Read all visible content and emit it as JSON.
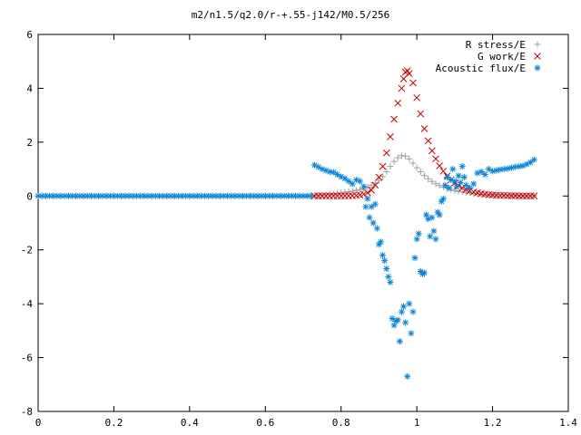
{
  "chart_data": {
    "type": "scatter",
    "title": "m2/n1.5/q2.0/r-+.55-j142/M0.5/256",
    "xlabel": "",
    "ylabel": "",
    "xlim": [
      0,
      1.4
    ],
    "ylim": [
      -8,
      6
    ],
    "x_ticks": [
      0,
      0.2,
      0.4,
      0.6,
      0.8,
      1,
      1.2,
      1.4
    ],
    "y_ticks": [
      -8,
      -6,
      -4,
      -2,
      0,
      2,
      4,
      6
    ],
    "grid": false,
    "legend_position": "top-right",
    "series": [
      {
        "name": "R stress/E",
        "marker": "plus",
        "color": "#a0a0a0",
        "points": [
          [
            0.0,
            0
          ],
          [
            0.02,
            0
          ],
          [
            0.04,
            0
          ],
          [
            0.06,
            0
          ],
          [
            0.08,
            0
          ],
          [
            0.1,
            0
          ],
          [
            0.12,
            0
          ],
          [
            0.14,
            0
          ],
          [
            0.16,
            0
          ],
          [
            0.18,
            0
          ],
          [
            0.2,
            0
          ],
          [
            0.22,
            0
          ],
          [
            0.24,
            0
          ],
          [
            0.26,
            0
          ],
          [
            0.28,
            0
          ],
          [
            0.3,
            0
          ],
          [
            0.32,
            0
          ],
          [
            0.34,
            0
          ],
          [
            0.36,
            0
          ],
          [
            0.38,
            0
          ],
          [
            0.4,
            0
          ],
          [
            0.42,
            0
          ],
          [
            0.44,
            0
          ],
          [
            0.46,
            0
          ],
          [
            0.48,
            0
          ],
          [
            0.5,
            0
          ],
          [
            0.52,
            0
          ],
          [
            0.54,
            0
          ],
          [
            0.56,
            0
          ],
          [
            0.58,
            0
          ],
          [
            0.6,
            0
          ],
          [
            0.62,
            0
          ],
          [
            0.64,
            0
          ],
          [
            0.66,
            0
          ],
          [
            0.68,
            0
          ],
          [
            0.7,
            0
          ],
          [
            0.72,
            0
          ],
          [
            0.73,
            0.02
          ],
          [
            0.74,
            0.03
          ],
          [
            0.75,
            0.04
          ],
          [
            0.76,
            0.05
          ],
          [
            0.77,
            0.07
          ],
          [
            0.78,
            0.08
          ],
          [
            0.79,
            0.1
          ],
          [
            0.8,
            0.12
          ],
          [
            0.81,
            0.14
          ],
          [
            0.82,
            0.16
          ],
          [
            0.83,
            0.18
          ],
          [
            0.84,
            0.21
          ],
          [
            0.85,
            0.24
          ],
          [
            0.86,
            0.28
          ],
          [
            0.87,
            0.33
          ],
          [
            0.88,
            0.4
          ],
          [
            0.89,
            0.48
          ],
          [
            0.9,
            0.58
          ],
          [
            0.91,
            0.72
          ],
          [
            0.92,
            0.9
          ],
          [
            0.93,
            1.1
          ],
          [
            0.94,
            1.28
          ],
          [
            0.95,
            1.42
          ],
          [
            0.96,
            1.5
          ],
          [
            0.97,
            1.48
          ],
          [
            0.98,
            1.38
          ],
          [
            0.99,
            1.22
          ],
          [
            1.0,
            1.05
          ],
          [
            1.01,
            0.9
          ],
          [
            1.02,
            0.76
          ],
          [
            1.03,
            0.64
          ],
          [
            1.04,
            0.54
          ],
          [
            1.05,
            0.46
          ],
          [
            1.06,
            0.39
          ],
          [
            1.07,
            0.33
          ],
          [
            1.08,
            0.28
          ],
          [
            1.09,
            0.24
          ],
          [
            1.1,
            0.2
          ],
          [
            1.11,
            0.17
          ],
          [
            1.12,
            0.15
          ],
          [
            1.13,
            0.13
          ],
          [
            1.14,
            0.11
          ],
          [
            1.15,
            0.1
          ],
          [
            1.16,
            0.08
          ],
          [
            1.17,
            0.07
          ],
          [
            1.18,
            0.06
          ],
          [
            1.19,
            0.05
          ],
          [
            1.2,
            0.05
          ],
          [
            1.21,
            0.04
          ],
          [
            1.22,
            0.04
          ],
          [
            1.23,
            0.03
          ],
          [
            1.24,
            0.03
          ],
          [
            1.25,
            0.02
          ],
          [
            1.26,
            0.02
          ],
          [
            1.27,
            0.02
          ],
          [
            1.28,
            0.01
          ],
          [
            1.29,
            0.01
          ],
          [
            1.3,
            0.01
          ],
          [
            1.31,
            0.01
          ]
        ]
      },
      {
        "name": "G work/E",
        "marker": "cross",
        "color": "#cc0000",
        "points": [
          [
            0.73,
            0
          ],
          [
            0.74,
            0
          ],
          [
            0.75,
            0
          ],
          [
            0.76,
            0
          ],
          [
            0.77,
            0
          ],
          [
            0.78,
            0
          ],
          [
            0.79,
            0
          ],
          [
            0.8,
            0
          ],
          [
            0.81,
            0
          ],
          [
            0.82,
            0
          ],
          [
            0.83,
            0.01
          ],
          [
            0.84,
            0.02
          ],
          [
            0.85,
            0.04
          ],
          [
            0.86,
            0.07
          ],
          [
            0.87,
            0.12
          ],
          [
            0.88,
            0.22
          ],
          [
            0.89,
            0.4
          ],
          [
            0.9,
            0.7
          ],
          [
            0.91,
            1.1
          ],
          [
            0.92,
            1.6
          ],
          [
            0.93,
            2.2
          ],
          [
            0.94,
            2.85
          ],
          [
            0.95,
            3.45
          ],
          [
            0.96,
            4.0
          ],
          [
            0.965,
            4.35
          ],
          [
            0.97,
            4.6
          ],
          [
            0.975,
            4.65
          ],
          [
            0.98,
            4.55
          ],
          [
            0.99,
            4.2
          ],
          [
            1.0,
            3.65
          ],
          [
            1.01,
            3.05
          ],
          [
            1.02,
            2.5
          ],
          [
            1.03,
            2.05
          ],
          [
            1.04,
            1.68
          ],
          [
            1.05,
            1.38
          ],
          [
            1.06,
            1.12
          ],
          [
            1.07,
            0.92
          ],
          [
            1.08,
            0.74
          ],
          [
            1.09,
            0.6
          ],
          [
            1.1,
            0.48
          ],
          [
            1.11,
            0.38
          ],
          [
            1.12,
            0.3
          ],
          [
            1.13,
            0.24
          ],
          [
            1.14,
            0.19
          ],
          [
            1.15,
            0.15
          ],
          [
            1.16,
            0.12
          ],
          [
            1.17,
            0.09
          ],
          [
            1.18,
            0.07
          ],
          [
            1.19,
            0.05
          ],
          [
            1.2,
            0.04
          ],
          [
            1.21,
            0.03
          ],
          [
            1.22,
            0.02
          ],
          [
            1.23,
            0.02
          ],
          [
            1.24,
            0.01
          ],
          [
            1.25,
            0.01
          ],
          [
            1.26,
            0.01
          ],
          [
            1.27,
            0.0
          ],
          [
            1.28,
            0.0
          ],
          [
            1.29,
            0.0
          ],
          [
            1.3,
            0.0
          ],
          [
            1.31,
            0.0
          ]
        ]
      },
      {
        "name": "Acoustic flux/E",
        "marker": "star",
        "color": "#0a84d8",
        "points": [
          [
            0.0,
            0
          ],
          [
            0.01,
            0
          ],
          [
            0.02,
            0
          ],
          [
            0.03,
            0
          ],
          [
            0.04,
            0
          ],
          [
            0.05,
            0
          ],
          [
            0.06,
            0
          ],
          [
            0.07,
            0
          ],
          [
            0.08,
            0
          ],
          [
            0.09,
            0
          ],
          [
            0.1,
            0
          ],
          [
            0.11,
            0
          ],
          [
            0.12,
            0
          ],
          [
            0.13,
            0
          ],
          [
            0.14,
            0
          ],
          [
            0.15,
            0
          ],
          [
            0.16,
            0
          ],
          [
            0.17,
            0
          ],
          [
            0.18,
            0
          ],
          [
            0.19,
            0
          ],
          [
            0.2,
            0
          ],
          [
            0.21,
            0
          ],
          [
            0.22,
            0
          ],
          [
            0.23,
            0
          ],
          [
            0.24,
            0
          ],
          [
            0.25,
            0
          ],
          [
            0.26,
            0
          ],
          [
            0.27,
            0
          ],
          [
            0.28,
            0
          ],
          [
            0.29,
            0
          ],
          [
            0.3,
            0
          ],
          [
            0.31,
            0
          ],
          [
            0.32,
            0
          ],
          [
            0.33,
            0
          ],
          [
            0.34,
            0
          ],
          [
            0.35,
            0
          ],
          [
            0.36,
            0
          ],
          [
            0.37,
            0
          ],
          [
            0.38,
            0
          ],
          [
            0.39,
            0
          ],
          [
            0.4,
            0
          ],
          [
            0.41,
            0
          ],
          [
            0.42,
            0
          ],
          [
            0.43,
            0
          ],
          [
            0.44,
            0
          ],
          [
            0.45,
            0
          ],
          [
            0.46,
            0
          ],
          [
            0.47,
            0
          ],
          [
            0.48,
            0
          ],
          [
            0.49,
            0
          ],
          [
            0.5,
            0
          ],
          [
            0.51,
            0
          ],
          [
            0.52,
            0
          ],
          [
            0.53,
            0
          ],
          [
            0.54,
            0
          ],
          [
            0.55,
            0
          ],
          [
            0.56,
            0
          ],
          [
            0.57,
            0
          ],
          [
            0.58,
            0
          ],
          [
            0.59,
            0
          ],
          [
            0.6,
            0
          ],
          [
            0.61,
            0
          ],
          [
            0.62,
            0
          ],
          [
            0.63,
            0
          ],
          [
            0.64,
            0
          ],
          [
            0.65,
            0
          ],
          [
            0.66,
            0
          ],
          [
            0.67,
            0
          ],
          [
            0.68,
            0
          ],
          [
            0.69,
            0
          ],
          [
            0.7,
            0
          ],
          [
            0.71,
            0
          ],
          [
            0.72,
            0
          ],
          [
            0.73,
            1.15
          ],
          [
            0.74,
            1.08
          ],
          [
            0.75,
            1.0
          ],
          [
            0.76,
            0.95
          ],
          [
            0.77,
            0.9
          ],
          [
            0.78,
            0.88
          ],
          [
            0.79,
            0.8
          ],
          [
            0.8,
            0.72
          ],
          [
            0.81,
            0.65
          ],
          [
            0.82,
            0.55
          ],
          [
            0.83,
            0.45
          ],
          [
            0.84,
            0.6
          ],
          [
            0.85,
            0.55
          ],
          [
            0.86,
            0.35
          ],
          [
            0.865,
            -0.4
          ],
          [
            0.87,
            -0.1
          ],
          [
            0.875,
            -0.8
          ],
          [
            0.88,
            -0.4
          ],
          [
            0.885,
            -1.0
          ],
          [
            0.89,
            -0.3
          ],
          [
            0.895,
            -1.2
          ],
          [
            0.9,
            -1.8
          ],
          [
            0.905,
            -1.7
          ],
          [
            0.91,
            -2.2
          ],
          [
            0.915,
            -2.4
          ],
          [
            0.92,
            -2.7
          ],
          [
            0.925,
            -3.0
          ],
          [
            0.93,
            -3.2
          ],
          [
            0.935,
            -4.55
          ],
          [
            0.94,
            -4.8
          ],
          [
            0.945,
            -4.65
          ],
          [
            0.95,
            -4.6
          ],
          [
            0.955,
            -5.4
          ],
          [
            0.96,
            -4.3
          ],
          [
            0.965,
            -4.1
          ],
          [
            0.97,
            -4.7
          ],
          [
            0.975,
            -6.7
          ],
          [
            0.98,
            -4.0
          ],
          [
            0.985,
            -5.1
          ],
          [
            0.99,
            -4.3
          ],
          [
            0.995,
            -2.3
          ],
          [
            1.0,
            -1.6
          ],
          [
            1.005,
            -1.4
          ],
          [
            1.01,
            -2.8
          ],
          [
            1.015,
            -2.9
          ],
          [
            1.02,
            -2.85
          ],
          [
            1.025,
            -0.7
          ],
          [
            1.03,
            -0.85
          ],
          [
            1.035,
            -1.5
          ],
          [
            1.04,
            -0.8
          ],
          [
            1.045,
            -1.3
          ],
          [
            1.05,
            -1.6
          ],
          [
            1.055,
            -0.6
          ],
          [
            1.06,
            -0.7
          ],
          [
            1.065,
            -0.2
          ],
          [
            1.07,
            -0.1
          ],
          [
            1.075,
            0.4
          ],
          [
            1.08,
            0.7
          ],
          [
            1.085,
            0.3
          ],
          [
            1.09,
            0.6
          ],
          [
            1.095,
            1.0
          ],
          [
            1.1,
            0.55
          ],
          [
            1.105,
            0.35
          ],
          [
            1.11,
            0.75
          ],
          [
            1.115,
            0.5
          ],
          [
            1.12,
            1.1
          ],
          [
            1.125,
            0.7
          ],
          [
            1.13,
            0.4
          ],
          [
            1.14,
            0.3
          ],
          [
            1.15,
            0.45
          ],
          [
            1.16,
            0.85
          ],
          [
            1.17,
            0.9
          ],
          [
            1.18,
            0.8
          ],
          [
            1.19,
            1.0
          ],
          [
            1.2,
            0.92
          ],
          [
            1.21,
            0.95
          ],
          [
            1.22,
            0.98
          ],
          [
            1.23,
            1.0
          ],
          [
            1.24,
            1.02
          ],
          [
            1.25,
            1.05
          ],
          [
            1.26,
            1.08
          ],
          [
            1.27,
            1.1
          ],
          [
            1.28,
            1.12
          ],
          [
            1.29,
            1.18
          ],
          [
            1.3,
            1.25
          ],
          [
            1.31,
            1.35
          ]
        ]
      }
    ]
  }
}
